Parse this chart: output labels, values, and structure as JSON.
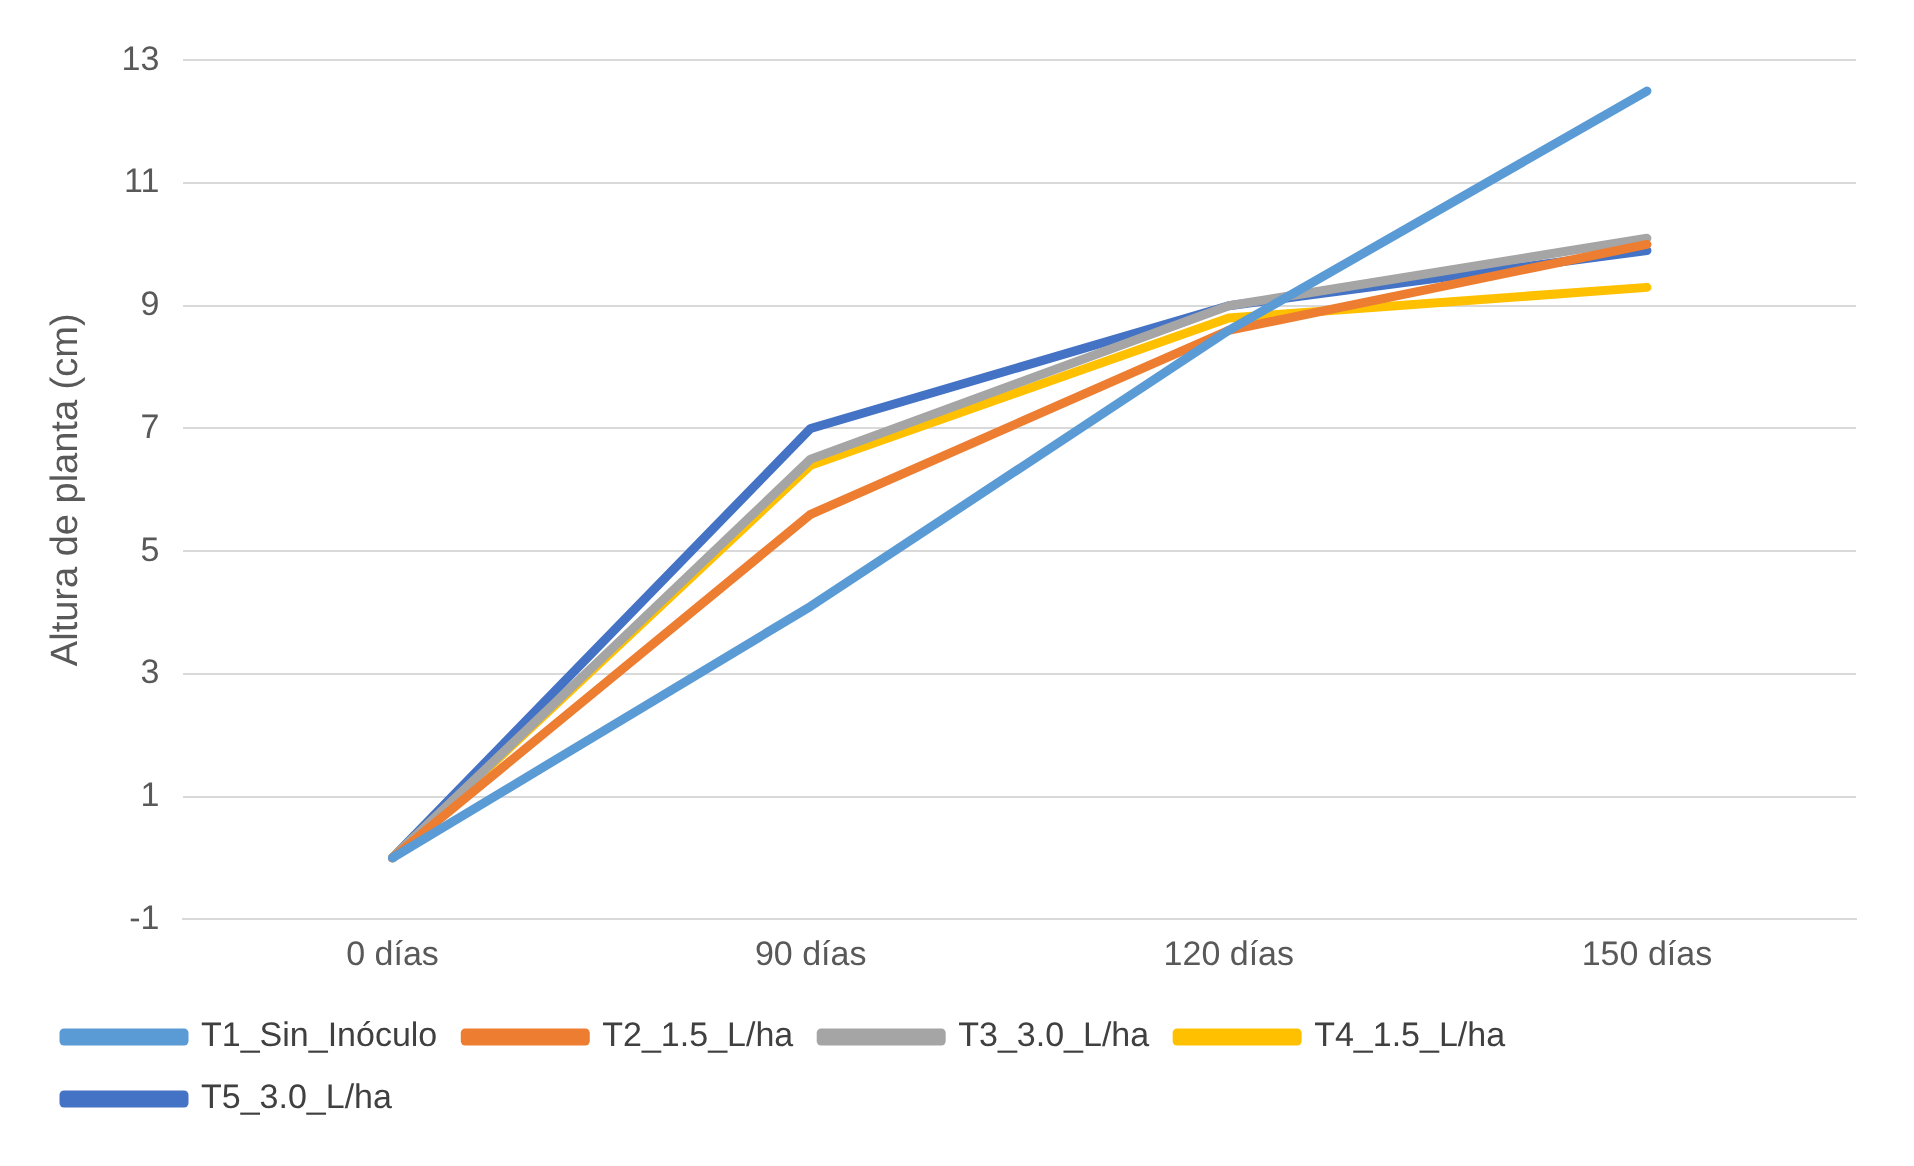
{
  "chart_data": {
    "type": "line",
    "ylabel": "Altura de planta (cm)",
    "categories": [
      "0 días",
      "90 días",
      "120 días",
      "150 días"
    ],
    "ylim": [
      -1,
      13
    ],
    "yticks": [
      -1,
      1,
      3,
      5,
      7,
      9,
      11,
      13
    ],
    "grid": "y",
    "legend": "bottom",
    "line_style": "solid",
    "series": [
      {
        "name": "T1_Sin_Inóculo",
        "color": "#5b9bd5",
        "values": [
          0,
          4.1,
          8.6,
          12.5
        ]
      },
      {
        "name": "T2_1.5_L/ha",
        "color": "#ed7d31",
        "values": [
          0,
          5.6,
          8.6,
          10.0
        ]
      },
      {
        "name": "T3_3.0_L/ha",
        "color": "#a5a5a5",
        "values": [
          0,
          6.5,
          9.0,
          10.1
        ]
      },
      {
        "name": "T4_1.5_L/ha",
        "color": "#ffc000",
        "values": [
          0,
          6.4,
          8.8,
          9.3
        ]
      },
      {
        "name": "T5_3.0_L/ha",
        "color": "#4472c4",
        "values": [
          0,
          7.0,
          9.0,
          9.9
        ]
      }
    ]
  }
}
